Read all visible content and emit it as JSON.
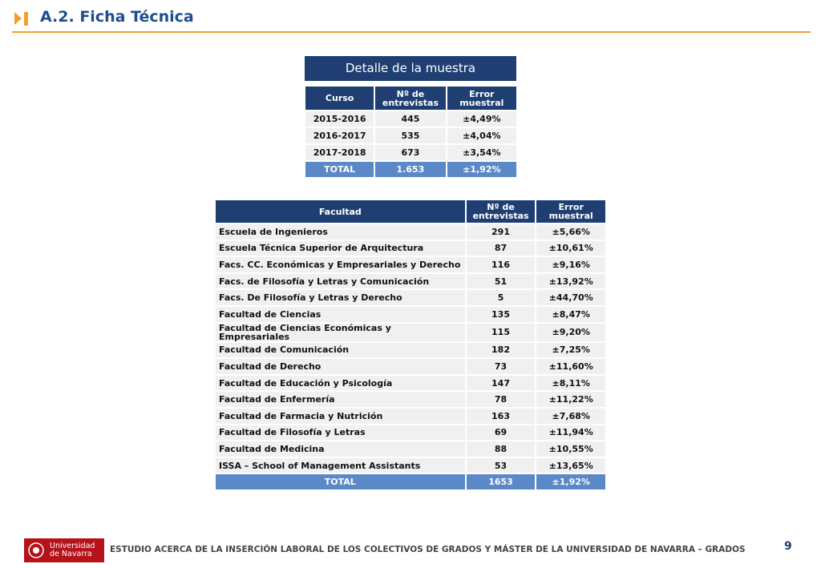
{
  "header": {
    "title": "A.2. Ficha Técnica"
  },
  "table1": {
    "title": "Detalle de la muestra",
    "columns": [
      "Curso",
      "Nº de entrevistas",
      "Error muestral"
    ],
    "rows": [
      [
        "2015-2016",
        "445",
        "±4,49%"
      ],
      [
        "2016-2017",
        "535",
        "±4,04%"
      ],
      [
        "2017-2018",
        "673",
        "±3,54%"
      ]
    ],
    "total": [
      "TOTAL",
      "1.653",
      "±1,92%"
    ]
  },
  "table2": {
    "columns": [
      "Facultad",
      "Nº de entrevistas",
      "Error muestral"
    ],
    "rows": [
      [
        "Escuela de Ingenieros",
        "291",
        "±5,66%"
      ],
      [
        "Escuela Técnica Superior de Arquitectura",
        "87",
        "±10,61%"
      ],
      [
        "Facs. CC. Económicas y Empresariales y Derecho",
        "116",
        "±9,16%"
      ],
      [
        "Facs. de Filosofía y Letras y Comunicación",
        "51",
        "±13,92%"
      ],
      [
        "Facs. De Filosofía y Letras y Derecho",
        "5",
        "±44,70%"
      ],
      [
        "Facultad de Ciencias",
        "135",
        "±8,47%"
      ],
      [
        "Facultad de Ciencias Económicas y Empresariales",
        "115",
        "±9,20%"
      ],
      [
        "Facultad de Comunicación",
        "182",
        "±7,25%"
      ],
      [
        "Facultad de Derecho",
        "73",
        "±11,60%"
      ],
      [
        "Facultad de Educación y Psicología",
        "147",
        "±8,11%"
      ],
      [
        "Facultad de Enfermería",
        "78",
        "±11,22%"
      ],
      [
        "Facultad de Farmacia y Nutrición",
        "163",
        "±7,68%"
      ],
      [
        "Facultad de Filosofía y Letras",
        "69",
        "±11,94%"
      ],
      [
        "Facultad de Medicina",
        "88",
        "±10,55%"
      ],
      [
        "ISSA – School of Management Assistants",
        "53",
        "±13,65%"
      ]
    ],
    "total": [
      "TOTAL",
      "1653",
      "±1,92%"
    ]
  },
  "footer": {
    "logo": [
      "Universidad",
      "de Navarra"
    ],
    "text": "ESTUDIO ACERCA DE LA INSERCIÓN LABORAL DE LOS COLECTIVOS DE GRADOS Y MÁSTER DE LA UNIVERSIDAD DE NAVARRA – GRADOS",
    "page": "9"
  }
}
